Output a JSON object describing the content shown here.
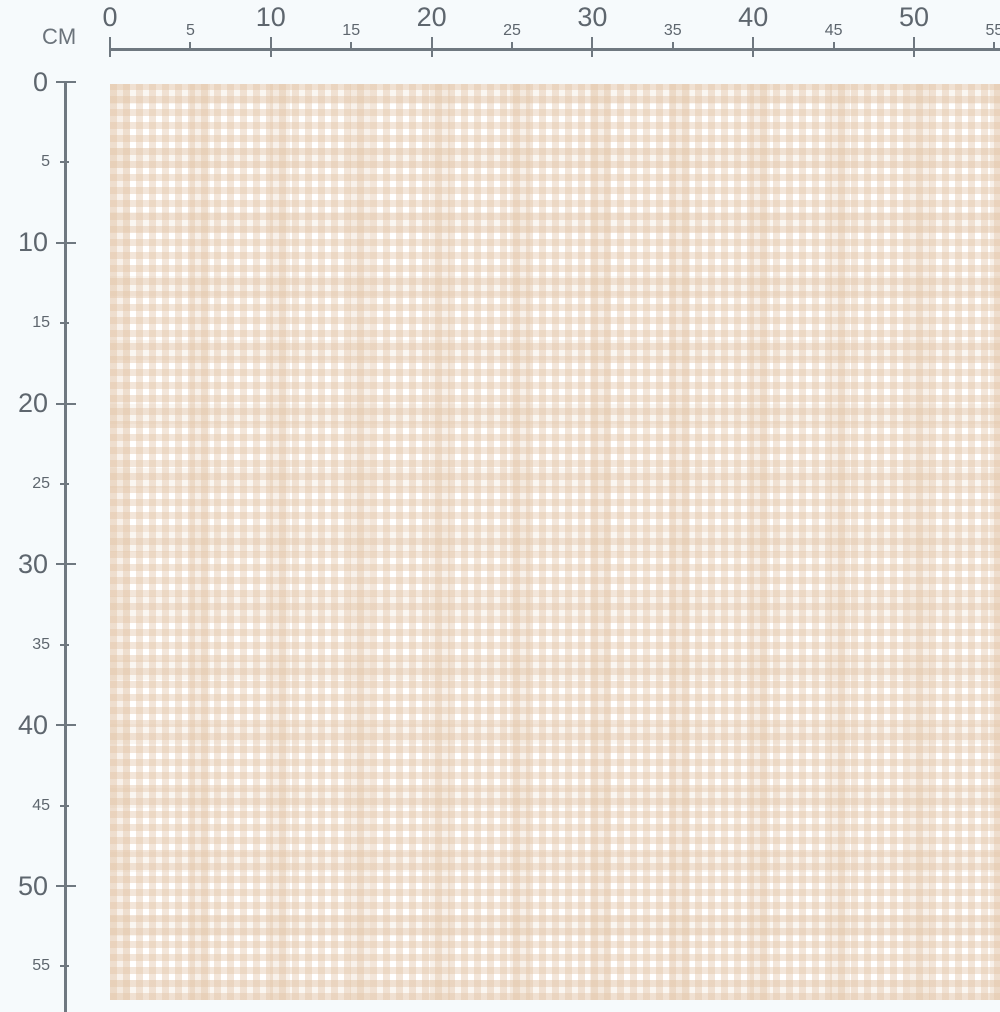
{
  "ruler": {
    "unit_label": "CM",
    "horizontal_ticks": [
      0,
      5,
      10,
      15,
      20,
      25,
      30,
      35,
      40,
      45,
      50,
      55
    ],
    "vertical_ticks": [
      0,
      5,
      10,
      15,
      20,
      25,
      30,
      35,
      40,
      45,
      50,
      55
    ],
    "color": "#6f7880"
  },
  "fabric": {
    "pattern": "watercolor gingham check",
    "colors": [
      "#e2c4a6",
      "#ffffff"
    ]
  }
}
